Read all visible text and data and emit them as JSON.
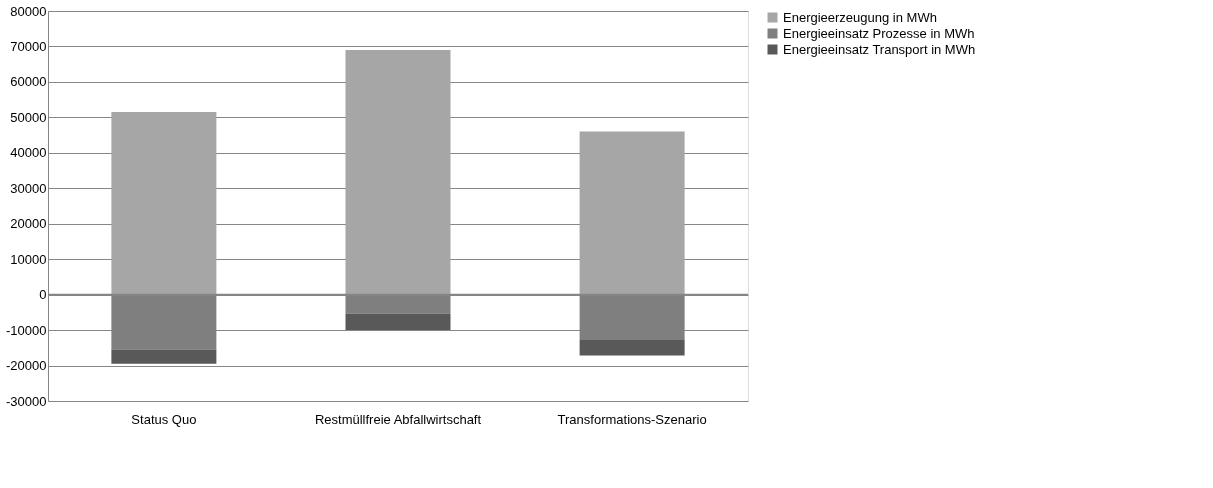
{
  "chart_data": {
    "type": "bar",
    "stacked": true,
    "categories": [
      "Status Quo",
      "Restmüllfreie Abfallwirtschaft",
      "Transformations-Szenario"
    ],
    "series": [
      {
        "name": "Energieerzeugung in MWh",
        "color": "#a6a6a6",
        "values": [
          51500,
          69000,
          46000
        ]
      },
      {
        "name": "Energieeinsatz Prozesse in MWh",
        "color": "#7f7f7f",
        "values": [
          -15500,
          -5300,
          -12800
        ]
      },
      {
        "name": "Energieeinsatz Transport in MWh",
        "color": "#595959",
        "values": [
          -4000,
          -4700,
          -4400
        ]
      }
    ],
    "ylim": [
      -30000,
      80000
    ],
    "yticks": [
      -30000,
      -20000,
      -10000,
      0,
      10000,
      20000,
      30000,
      40000,
      50000,
      60000,
      70000,
      80000
    ],
    "grid": "y",
    "legend": "right"
  }
}
